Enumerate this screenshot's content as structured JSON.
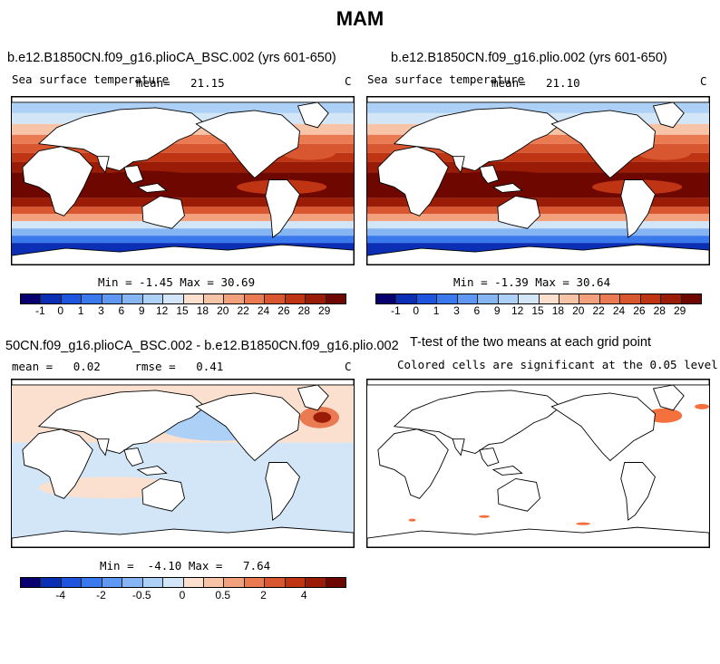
{
  "title": "MAM",
  "panels": {
    "p1": {
      "title": "b.e12.B1850CN.f09_g16.plioCA_BSC.002 (yrs 601-650)",
      "variable": "Sea surface temperature",
      "mean_label": "mean=",
      "mean_value": "21.15",
      "units": "C",
      "minmax": "Min =  -1.45 Max =  30.69"
    },
    "p2": {
      "title": "b.e12.B1850CN.f09_g16.plio.002 (yrs 601-650)",
      "variable": "Sea surface temperature",
      "mean_label": "mean=",
      "mean_value": "21.10",
      "units": "C",
      "minmax": "Min =  -1.39 Max =  30.64"
    },
    "p3": {
      "title": "50CN.f09_g16.plioCA_BSC.002 - b.e12.B1850CN.f09_g16.plio.002",
      "stats": "mean =   0.02     rmse =   0.41",
      "units": "C",
      "minmax": "Min =  -4.10 Max =   7.64"
    },
    "p4": {
      "title": "T-test of the two means at each grid point",
      "subtitle": "Colored cells are significant at the 0.05 level"
    }
  },
  "colorbar_sst": {
    "colors": [
      "#08006e",
      "#0a2fb5",
      "#1f55de",
      "#3a78ee",
      "#5f98f2",
      "#86b5f4",
      "#acd0f6",
      "#d2e6f8",
      "#fbe0d0",
      "#f8c4a8",
      "#f3a07c",
      "#ea7a52",
      "#d95730",
      "#bf3514",
      "#9a1b06",
      "#6e0700"
    ],
    "labels": [
      "-1",
      "0",
      "1",
      "3",
      "6",
      "9",
      "12",
      "15",
      "18",
      "20",
      "22",
      "24",
      "26",
      "28",
      "29"
    ]
  },
  "colorbar_diff": {
    "colors": [
      "#08006e",
      "#0a2fb5",
      "#1f55de",
      "#3a78ee",
      "#5f98f2",
      "#86b5f4",
      "#acd0f6",
      "#d2e6f8",
      "#fbe0d0",
      "#f8c4a8",
      "#f3a07c",
      "#ea7a52",
      "#d95730",
      "#bf3514",
      "#9a1b06",
      "#6e0700"
    ],
    "labels": [
      "-4",
      "-2",
      "-0.5",
      "0",
      "0.5",
      "2",
      "4"
    ]
  },
  "colors": {
    "land": "#ffffff",
    "coast": "#000000",
    "significant": "#f4703c"
  }
}
